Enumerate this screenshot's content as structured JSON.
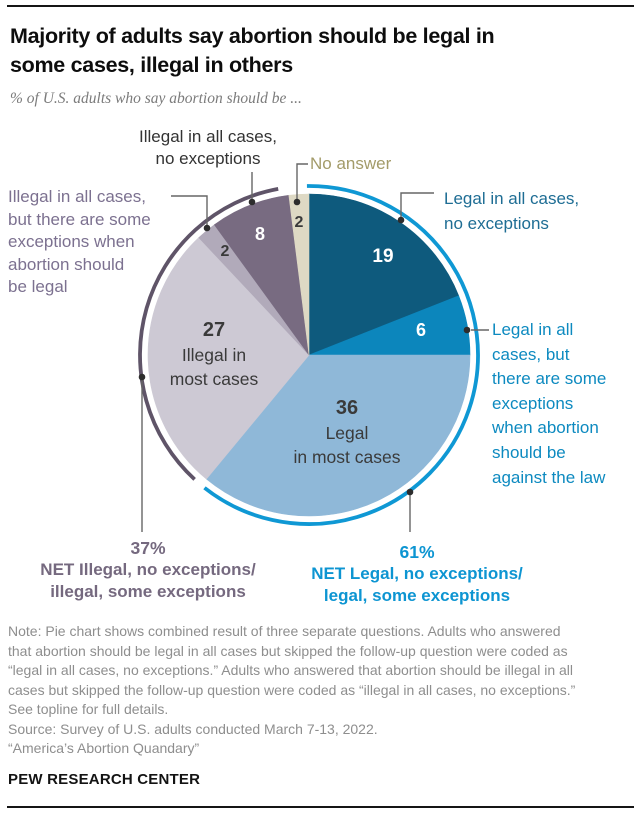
{
  "chart_data": {
    "type": "pie",
    "title": "Majority of adults say abortion should be legal in\nsome cases, illegal in others",
    "subtitle": "% of U.S. adults who say abortion should be ...",
    "units": "% of U.S. adults",
    "direction": "clockwise",
    "start_angle_deg": 0,
    "slices": [
      {
        "id": "legal-all",
        "label": "Legal in all cases, no exceptions",
        "value": 19,
        "color": "#0e5a7d"
      },
      {
        "id": "legal-exceptions",
        "label": "Legal in all cases, but there are some exceptions when abortion should be against the law",
        "value": 6,
        "color": "#0c86bc"
      },
      {
        "id": "legal-most",
        "label": "Legal in most cases",
        "value": 36,
        "color": "#8fb8d8"
      },
      {
        "id": "illegal-most",
        "label": "Illegal in most cases",
        "value": 27,
        "color": "#cdc9d4"
      },
      {
        "id": "illegal-exceptions",
        "label": "Illegal in all cases, but there are some exceptions when abortion should be legal",
        "value": 2,
        "color": "#b1aaba"
      },
      {
        "id": "illegal-all",
        "label": "Illegal in all cases, no exceptions",
        "value": 8,
        "color": "#786b81"
      },
      {
        "id": "no-answer",
        "label": "No answer",
        "value": 2,
        "color": "#ded9c4"
      }
    ],
    "nets": [
      {
        "id": "net-legal",
        "pct": "61%",
        "label": "NET Legal, no exceptions/\nlegal, some exceptions",
        "value": 61,
        "color": "#0d95d2",
        "arc_color": "#0f98d4"
      },
      {
        "id": "net-illegal",
        "pct": "37%",
        "label": "NET Illegal, no exceptions/\nillegal, some exceptions",
        "value": 37,
        "color": "#75697f",
        "arc_color": "#5f5468"
      }
    ]
  },
  "callouts": {
    "illegal_all": {
      "text": "Illegal in all cases,\nno exceptions",
      "color": "#333333"
    },
    "no_answer": {
      "text": "No answer",
      "color": "#a39b69"
    },
    "legal_all": {
      "text": "Legal in all cases,\nno exceptions",
      "color": "#1e6d94"
    },
    "legal_exceptions": {
      "text": "Legal in all\ncases, but\nthere are some\nexceptions\nwhen abortion\nshould be\nagainst the law",
      "color": "#0d8ac0"
    },
    "illegal_exceptions": {
      "text": "Illegal in all cases,\nbut there are some\nexceptions when\nabortion should\nbe legal",
      "color": "#7c7190"
    },
    "illegal_most_words": "Illegal in\nmost cases",
    "legal_most_words": "Legal\nin most cases"
  },
  "footer": {
    "note": "Note: Pie chart shows combined result of three separate questions. Adults who answered\nthat abortion should be legal in all cases but skipped the follow-up question were coded as\n“legal in all cases, no exceptions.” Adults who answered that abortion should be illegal in all\ncases but skipped the follow-up question were coded as “illegal in all cases, no exceptions.”\nSee topline for full details.",
    "source": "Source: Survey of U.S. adults conducted March 7-13, 2022.",
    "quote": "“America’s Abortion Quandary”",
    "brand": "PEW RESEARCH CENTER"
  }
}
